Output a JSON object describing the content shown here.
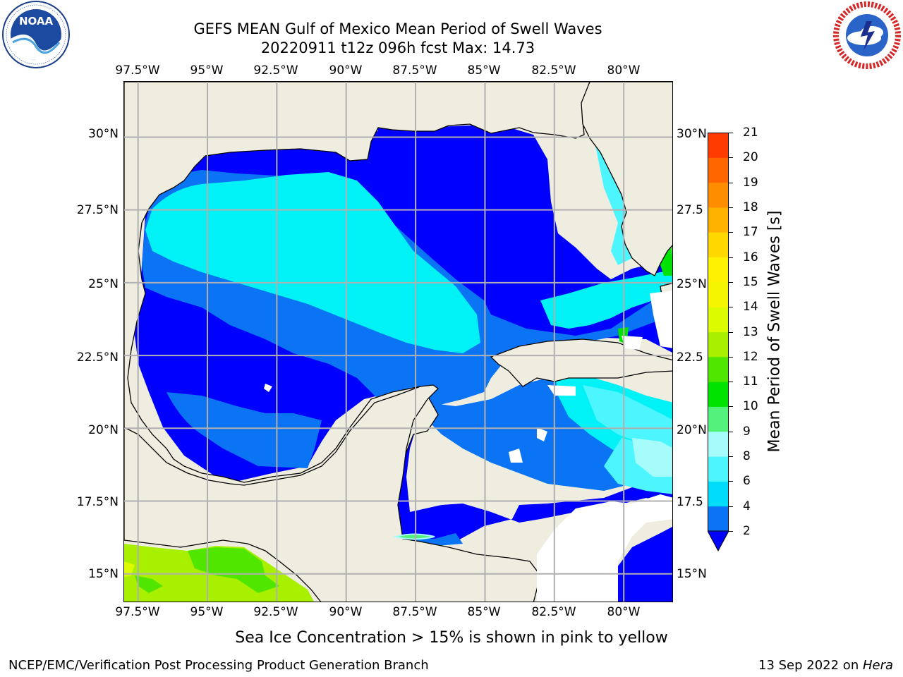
{
  "title": {
    "line1": "GEFS MEAN Gulf of Mexico Mean Period of Swell Waves",
    "line2": "20220911 t12z 096h fcst   Max: 14.73"
  },
  "logos": {
    "left": {
      "name": "NOAA",
      "ring_text": "NATIONAL OCEANIC AND ATMOSPHERIC ADMINISTRATION · U.S. DEPARTMENT OF COMMERCE"
    },
    "right": {
      "name": "NATIONAL WEATHER SERVICE"
    }
  },
  "map": {
    "lon_ticks": [
      "97.5°W",
      "95°W",
      "92.5°W",
      "90°W",
      "87.5°W",
      "85°W",
      "82.5°W",
      "80°W"
    ],
    "lat_ticks_left": [
      "30°N",
      "27.5°N",
      "25°N",
      "22.5°N",
      "20°N",
      "17.5°N",
      "15°N"
    ],
    "lat_ticks_right": [
      "30°N",
      "27.5",
      "25°N",
      "22.5",
      "20°N",
      "17.5",
      "15°N"
    ],
    "lon_values": [
      -97.5,
      -95,
      -92.5,
      -90,
      -87.5,
      -85,
      -82.5,
      -80
    ],
    "lat_values": [
      30,
      27.5,
      25,
      22.5,
      20,
      17.5,
      15
    ],
    "lon_range": [
      -98,
      -78.2
    ],
    "lat_range": [
      14,
      31.9
    ],
    "land_color": "#efede0",
    "grid_color": "#b0b0b0",
    "max_value": 14.73
  },
  "colorbar": {
    "label": "Mean Period of Swell Waves [s]",
    "ticks": [
      "21",
      "20",
      "19",
      "18",
      "17",
      "16",
      "15",
      "14",
      "13",
      "12",
      "11",
      "10",
      "9",
      "8",
      "6",
      "4",
      "2"
    ],
    "levels": [
      2,
      4,
      6,
      8,
      9,
      10,
      11,
      12,
      13,
      14,
      15,
      16,
      17,
      18,
      19,
      20,
      21
    ],
    "colors": [
      "#0a74f4",
      "#00dcfa",
      "#4df5ff",
      "#a6fbfb",
      "#53f07b",
      "#00e200",
      "#50e600",
      "#a8ef00",
      "#dcfb00",
      "#f5f500",
      "#fff200",
      "#ffd800",
      "#ffb300",
      "#ff8d00",
      "#ff6600",
      "#ff3b00"
    ],
    "under_color": "#0000ff"
  },
  "footnote": "Sea Ice Concentration > 15% is shown in pink to yellow",
  "credit_left": "NCEP/EMC/Verification Post Processing Product Generation Branch",
  "credit_right_date": "13 Sep 2022 on ",
  "credit_right_host": "Hera"
}
